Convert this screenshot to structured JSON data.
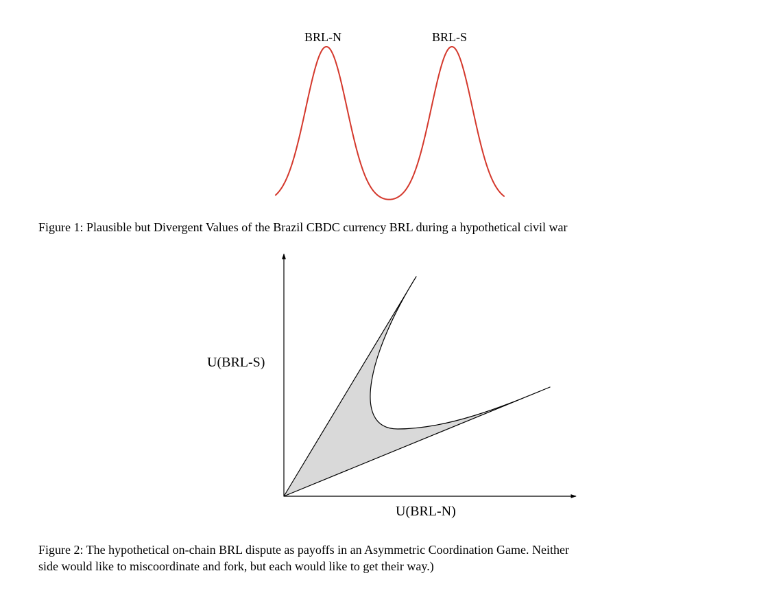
{
  "figure1": {
    "labels": {
      "left_peak": "BRL-N",
      "right_peak": "BRL-S"
    },
    "curve_color": "#d4382c",
    "caption": "Figure 1: Plausible but Divergent Values of the Brazil CBDC currency BRL during a hypothetical civil war"
  },
  "figure2": {
    "axis_labels": {
      "x": "U(BRL-N)",
      "y": "U(BRL-S)"
    },
    "region_fill": "#d9d9d9",
    "caption_line1": "Figure 2: The hypothetical on-chain BRL dispute as payoffs in an Asymmetric Coordination Game. Neither",
    "caption_line2": "side would like to miscoordinate and fork, but each would like to get their way.)"
  }
}
